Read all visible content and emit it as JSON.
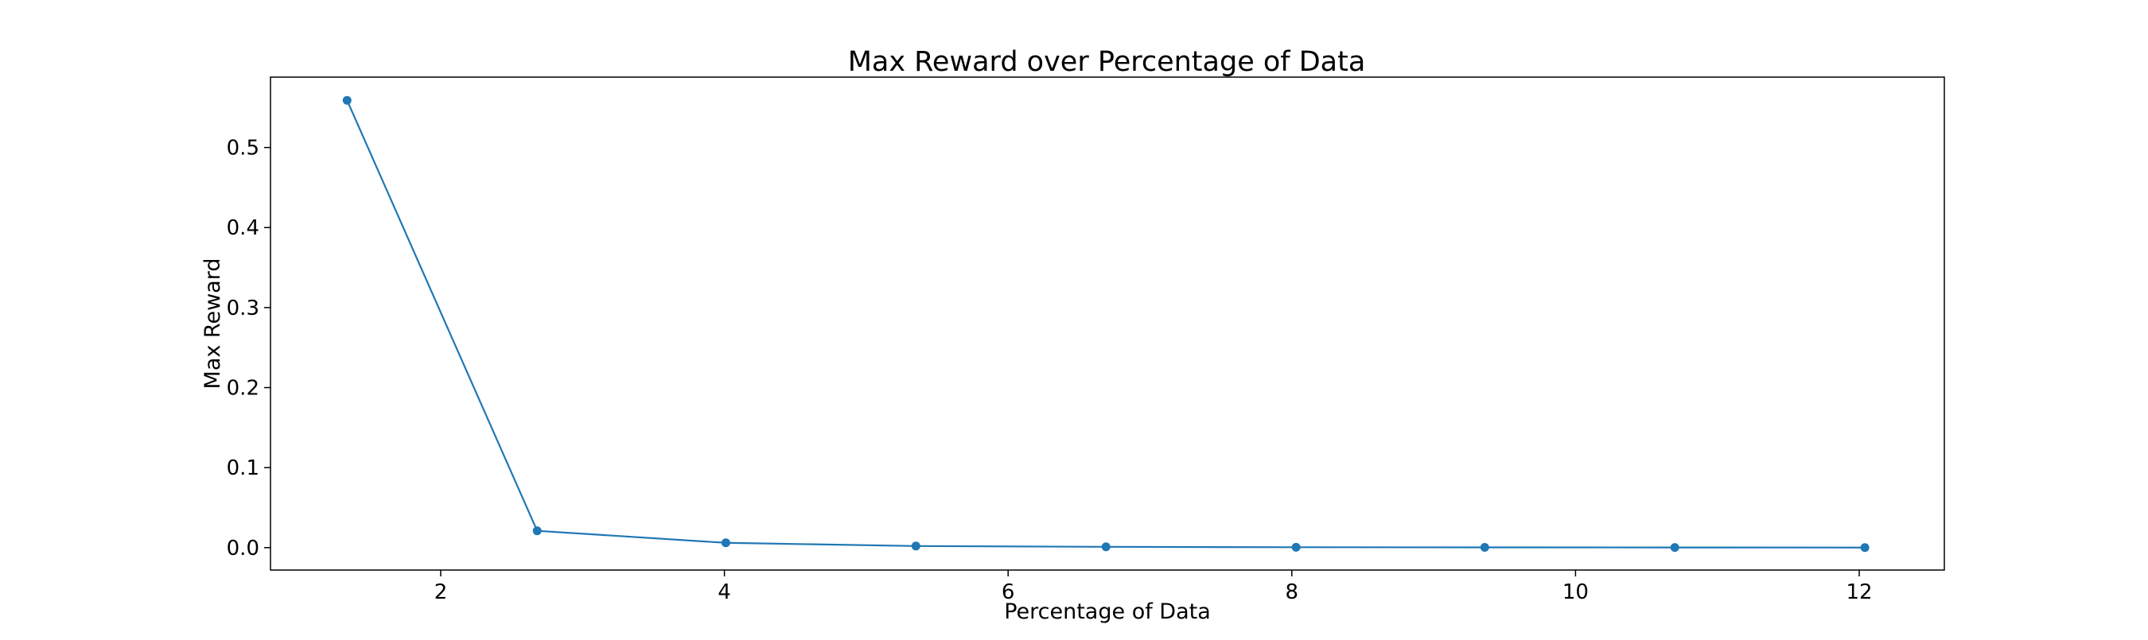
{
  "chart_data": {
    "type": "line",
    "title": "Max Reward over Percentage of Data",
    "xlabel": "Percentage of Data",
    "ylabel": "Max Reward",
    "xlim": [
      0.8,
      12.6
    ],
    "ylim": [
      -0.028,
      0.588
    ],
    "x_ticks": [
      2,
      4,
      6,
      8,
      10,
      12
    ],
    "y_ticks": [
      0.0,
      0.1,
      0.2,
      0.3,
      0.4,
      0.5
    ],
    "x_tick_labels": [
      "2",
      "4",
      "6",
      "8",
      "10",
      "12"
    ],
    "y_tick_labels": [
      "0.0",
      "0.1",
      "0.2",
      "0.3",
      "0.4",
      "0.5"
    ],
    "grid": false,
    "legend": "none",
    "color": "#1f77b4",
    "series": [
      {
        "x": [
          1.34,
          2.68,
          4.01,
          5.35,
          6.69,
          8.03,
          9.36,
          10.7,
          12.04
        ],
        "y": [
          0.559,
          0.021,
          0.006,
          0.002,
          0.001,
          0.0005,
          0.0003,
          0.0002,
          0.0001
        ]
      }
    ]
  }
}
